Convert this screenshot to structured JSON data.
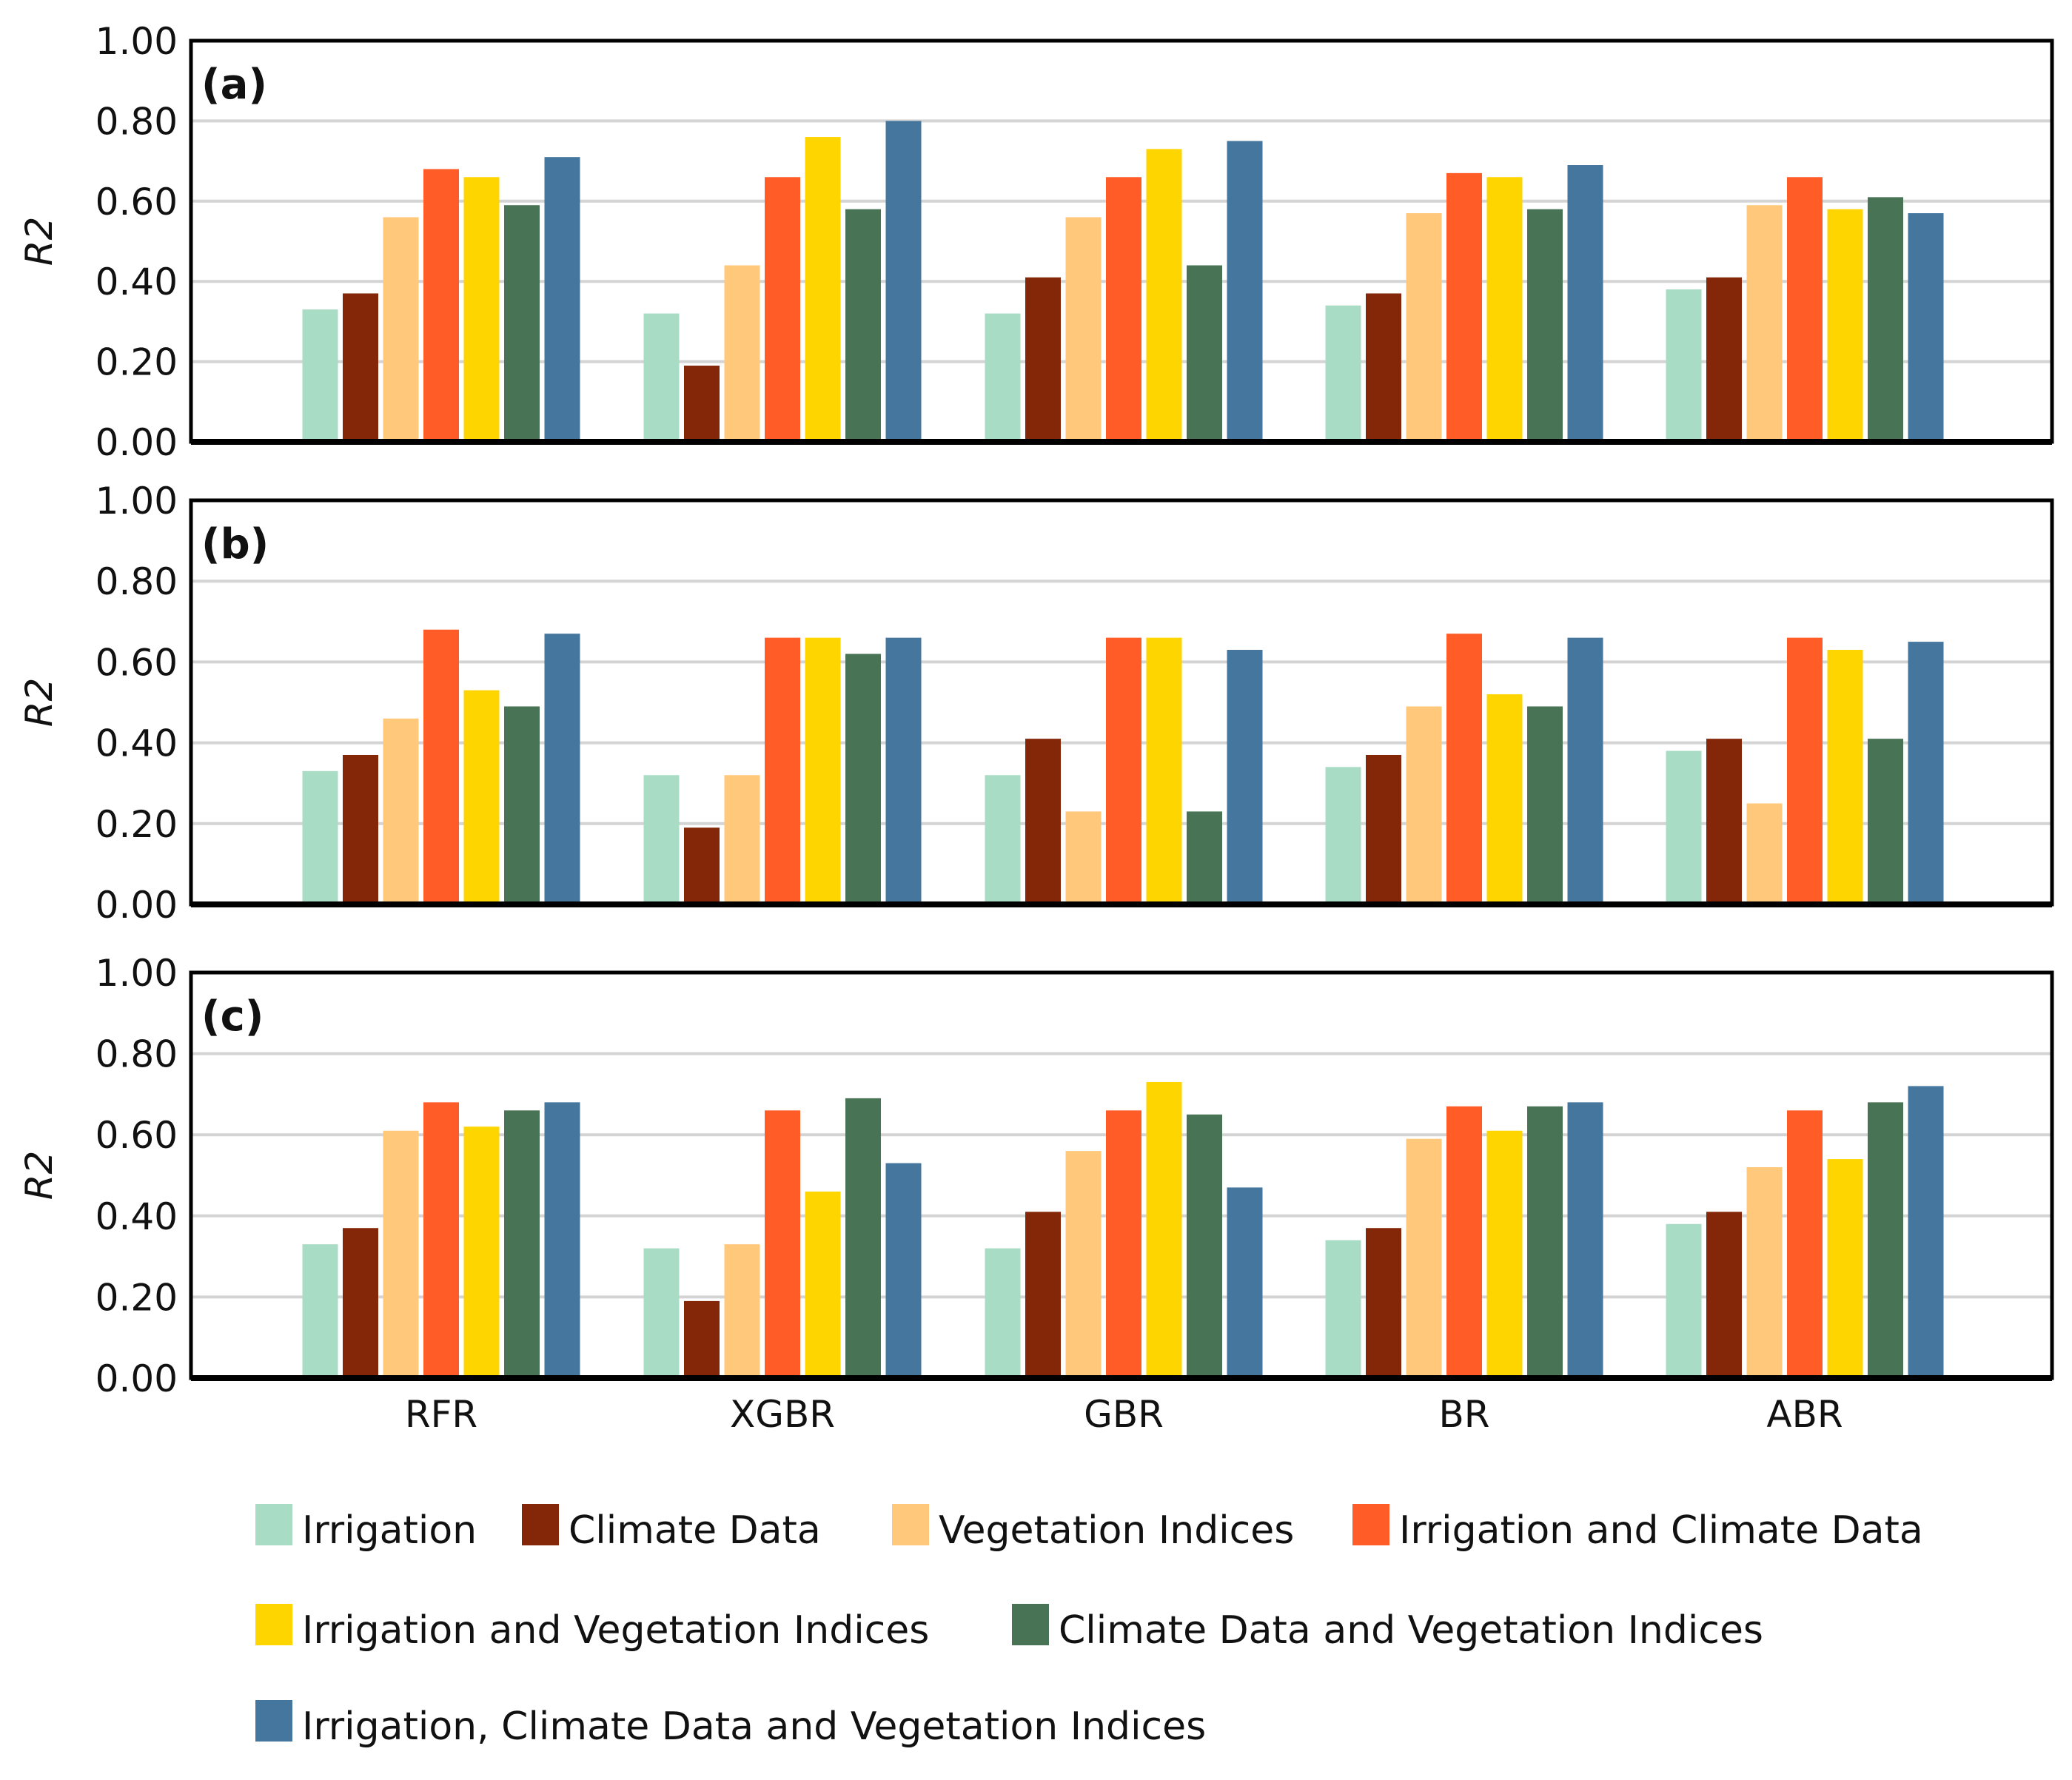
{
  "chart_data": {
    "type": "bar",
    "categories": [
      "RFR",
      "XGBR",
      "GBR",
      "BR",
      "ABR"
    ],
    "series_names": [
      "Irrigation",
      "Climate Data",
      "Vegetation Indices",
      "Irrigation and Climate Data",
      "Irrigation and Vegetation Indices",
      "Climate Data and Vegetation Indices",
      "Irrigation, Climate Data and Vegetation Indices"
    ],
    "colors": [
      "#a8dcc4",
      "#842608",
      "#ffc87a",
      "#ff5c28",
      "#ffd500",
      "#497355",
      "#45769e"
    ],
    "ylabel": "R2",
    "ylim": [
      0,
      1
    ],
    "yticks": [
      "0.00",
      "0.20",
      "0.40",
      "0.60",
      "0.80",
      "1.00"
    ],
    "grid": true,
    "legend_position": "bottom",
    "panels": [
      {
        "label": "(a)",
        "series": [
          {
            "name": "Irrigation",
            "values": [
              0.33,
              0.32,
              0.32,
              0.34,
              0.38
            ]
          },
          {
            "name": "Climate Data",
            "values": [
              0.37,
              0.19,
              0.41,
              0.37,
              0.41
            ]
          },
          {
            "name": "Vegetation Indices",
            "values": [
              0.56,
              0.44,
              0.56,
              0.57,
              0.59
            ]
          },
          {
            "name": "Irrigation and Climate Data",
            "values": [
              0.68,
              0.66,
              0.66,
              0.67,
              0.66
            ]
          },
          {
            "name": "Irrigation and Vegetation Indices",
            "values": [
              0.66,
              0.76,
              0.73,
              0.66,
              0.58
            ]
          },
          {
            "name": "Climate Data and Vegetation Indices",
            "values": [
              0.59,
              0.58,
              0.44,
              0.58,
              0.61
            ]
          },
          {
            "name": "Irrigation, Climate Data and Vegetation Indices",
            "values": [
              0.71,
              0.8,
              0.75,
              0.69,
              0.57
            ]
          }
        ]
      },
      {
        "label": "(b)",
        "series": [
          {
            "name": "Irrigation",
            "values": [
              0.33,
              0.32,
              0.32,
              0.34,
              0.38
            ]
          },
          {
            "name": "Climate Data",
            "values": [
              0.37,
              0.19,
              0.41,
              0.37,
              0.41
            ]
          },
          {
            "name": "Vegetation Indices",
            "values": [
              0.46,
              0.32,
              0.23,
              0.49,
              0.25
            ]
          },
          {
            "name": "Irrigation and Climate Data",
            "values": [
              0.68,
              0.66,
              0.66,
              0.67,
              0.66
            ]
          },
          {
            "name": "Irrigation and Vegetation Indices",
            "values": [
              0.53,
              0.66,
              0.66,
              0.52,
              0.63
            ]
          },
          {
            "name": "Climate Data and Vegetation Indices",
            "values": [
              0.49,
              0.62,
              0.23,
              0.49,
              0.41
            ]
          },
          {
            "name": "Irrigation, Climate Data and Vegetation Indices",
            "values": [
              0.67,
              0.66,
              0.63,
              0.66,
              0.65
            ]
          }
        ]
      },
      {
        "label": "(c)",
        "series": [
          {
            "name": "Irrigation",
            "values": [
              0.33,
              0.32,
              0.32,
              0.34,
              0.38
            ]
          },
          {
            "name": "Climate Data",
            "values": [
              0.37,
              0.19,
              0.41,
              0.37,
              0.41
            ]
          },
          {
            "name": "Vegetation Indices",
            "values": [
              0.61,
              0.33,
              0.56,
              0.59,
              0.52
            ]
          },
          {
            "name": "Irrigation and Climate Data",
            "values": [
              0.68,
              0.66,
              0.66,
              0.67,
              0.66
            ]
          },
          {
            "name": "Irrigation and Vegetation Indices",
            "values": [
              0.62,
              0.46,
              0.73,
              0.61,
              0.54
            ]
          },
          {
            "name": "Climate Data and Vegetation Indices",
            "values": [
              0.66,
              0.69,
              0.65,
              0.67,
              0.68
            ]
          },
          {
            "name": "Irrigation, Climate Data and Vegetation Indices",
            "values": [
              0.68,
              0.53,
              0.47,
              0.68,
              0.72
            ]
          }
        ]
      }
    ]
  }
}
